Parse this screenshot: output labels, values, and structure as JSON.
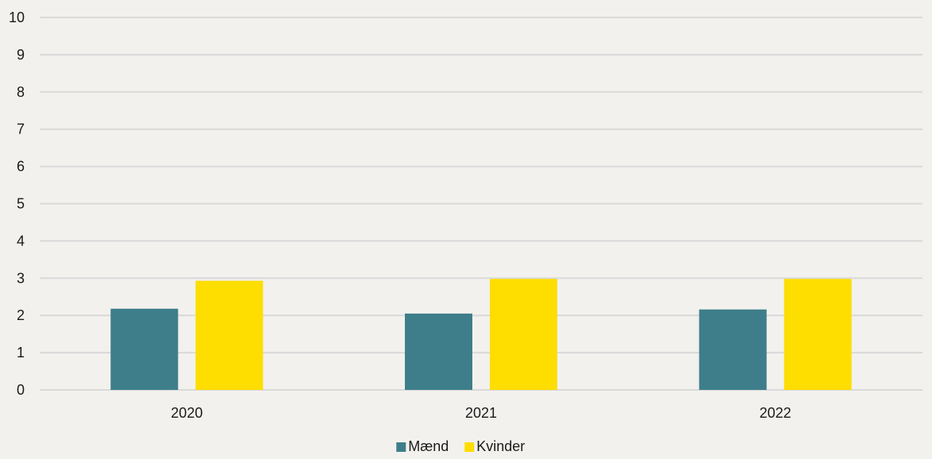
{
  "chart_data": {
    "type": "bar",
    "categories": [
      "2020",
      "2021",
      "2022"
    ],
    "series": [
      {
        "name": "Mænd",
        "values": [
          2.18,
          2.05,
          2.16
        ],
        "color": "#3e7e8a"
      },
      {
        "name": "Kvinder",
        "values": [
          2.93,
          2.98,
          2.98
        ],
        "color": "#fedd00"
      }
    ],
    "title": "",
    "xlabel": "",
    "ylabel": "",
    "ylim": [
      0,
      10
    ],
    "yticks": [
      "0",
      "1",
      "2",
      "3",
      "4",
      "5",
      "6",
      "7",
      "8",
      "9",
      "10"
    ],
    "grid": true,
    "legend_position": "bottom-center",
    "colors": {
      "background": "#f2f1ee",
      "gridline": "#d9d9d9",
      "text": "#1a1a1a"
    }
  }
}
